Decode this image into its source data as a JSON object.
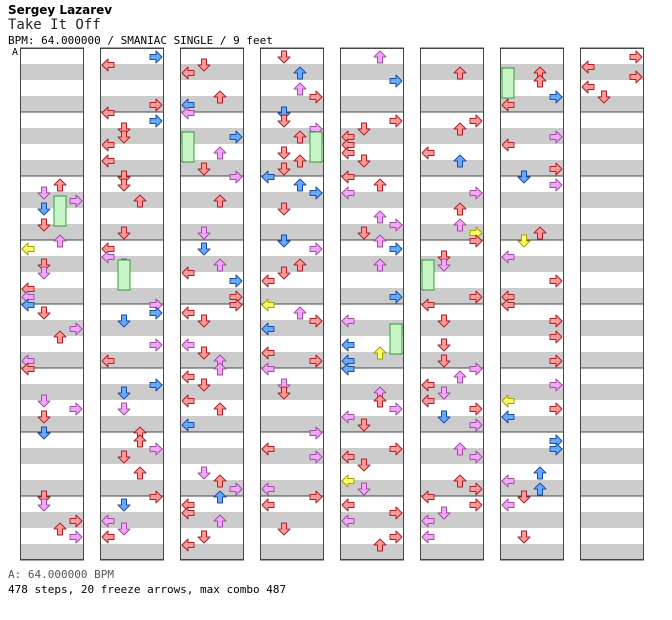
{
  "header": {
    "artist": "Sergey Lazarev",
    "title": "Take It Off",
    "info": "BPM: 64.000000 / SMANIAC SINGLE / 9 feet"
  },
  "section_marker": "A",
  "footer": {
    "stops": "A: 64.000000 BPM",
    "summary": "478 steps, 20 freeze arrows, max combo 487"
  },
  "colors": {
    "left": "#ff9a9a",
    "down": "#66aaff",
    "up": "#ff9a9a",
    "right": "#ff9a9a",
    "quarter": "#f4a6ff",
    "eighth": "#f4a6ff",
    "sixteenth": "#ffff66",
    "freeze": "#c8f5c8",
    "stripe": "#cccccc"
  },
  "icons": [
    "left-arrow-icon",
    "down-arrow-icon",
    "up-arrow-icon",
    "right-arrow-icon",
    "freeze-arrow-icon"
  ]
}
